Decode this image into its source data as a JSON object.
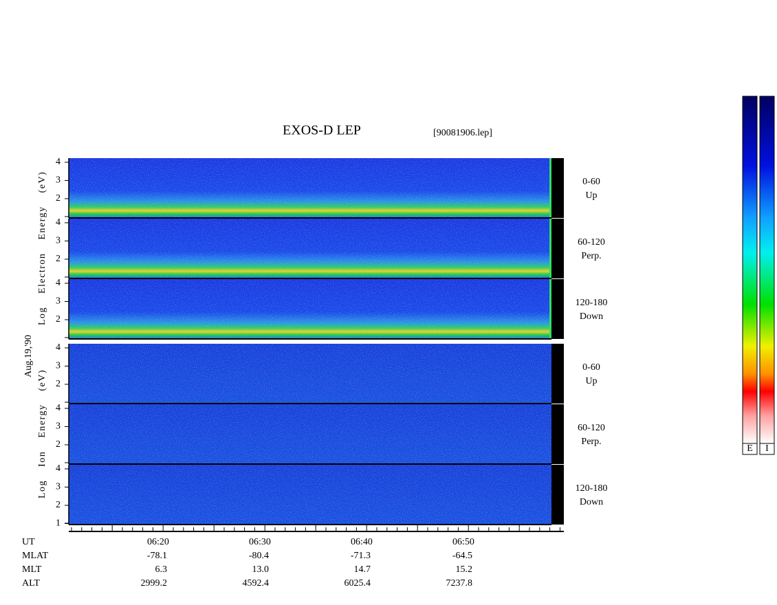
{
  "title": "EXOS-D LEP",
  "file": "[90081906.lep]",
  "date": "Aug.19,'90",
  "groups": [
    {
      "axis_label": "Log Electron Energy (eV)",
      "panels": [
        {
          "range": "0-60",
          "direction": "Up",
          "yticks": [
            4,
            3,
            2
          ]
        },
        {
          "range": "60-120",
          "direction": "Perp.",
          "yticks": [
            4,
            3,
            2
          ]
        },
        {
          "range": "120-180",
          "direction": "Down",
          "yticks": [
            4,
            3,
            2
          ]
        }
      ]
    },
    {
      "axis_label": "Log Ion Energy (eV)",
      "panels": [
        {
          "range": "0-60",
          "direction": "Up",
          "yticks": [
            4,
            3,
            2
          ]
        },
        {
          "range": "60-120",
          "direction": "Perp.",
          "yticks": [
            4,
            3,
            2
          ]
        },
        {
          "range": "120-180",
          "direction": "Down",
          "yticks": [
            4,
            3,
            2,
            1
          ]
        }
      ]
    }
  ],
  "ephemeris": {
    "labels": [
      "UT",
      "MLAT",
      "MLT",
      "ALT"
    ],
    "columns": [
      [
        "06:20",
        "-78.1",
        "6.3",
        "2999.2"
      ],
      [
        "06:30",
        "-80.4",
        "13.0",
        "4592.4"
      ],
      [
        "06:40",
        "-71.3",
        "14.7",
        "6025.4"
      ],
      [
        "06:50",
        "-64.5",
        "15.2",
        "7237.8"
      ]
    ]
  },
  "colorbar_labels": [
    "E",
    "I"
  ]
}
